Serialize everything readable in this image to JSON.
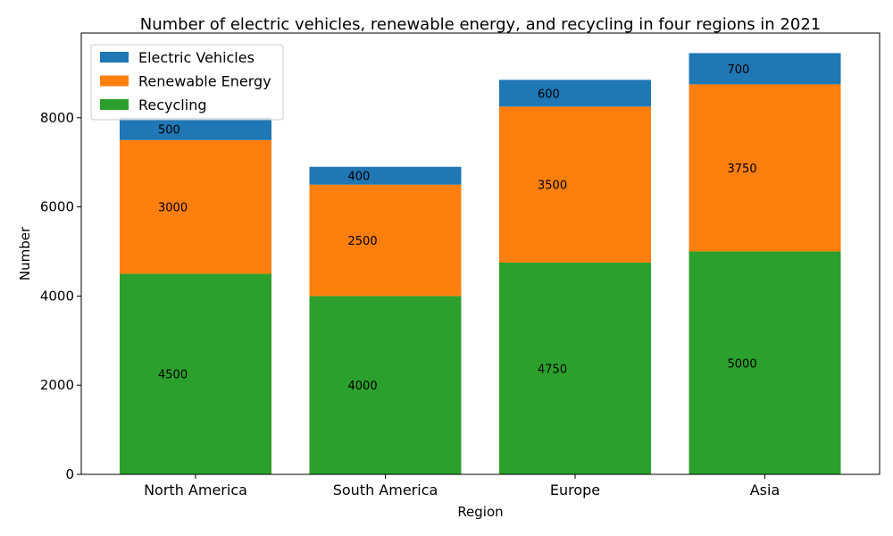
{
  "chart_data": {
    "type": "bar",
    "stacked": true,
    "title": "Number of electric vehicles, renewable energy, and recycling in four regions in 2021",
    "xlabel": "Region",
    "ylabel": "Number",
    "categories": [
      "North America",
      "South America",
      "Europe",
      "Asia"
    ],
    "ylim": [
      0,
      9900
    ],
    "yticks": [
      0,
      2000,
      4000,
      6000,
      8000
    ],
    "grid": false,
    "legend_position": "top-left",
    "series": [
      {
        "name": "Recycling",
        "color": "#2ca02c",
        "values": [
          4500,
          4000,
          4750,
          5000
        ]
      },
      {
        "name": "Renewable Energy",
        "color": "#ff7f0e",
        "values": [
          3000,
          2500,
          3500,
          3750
        ]
      },
      {
        "name": "Electric Vehicles",
        "color": "#1f77b4",
        "values": [
          500,
          400,
          600,
          700
        ]
      }
    ],
    "legend_order": [
      "Electric Vehicles",
      "Renewable Energy",
      "Recycling"
    ]
  }
}
